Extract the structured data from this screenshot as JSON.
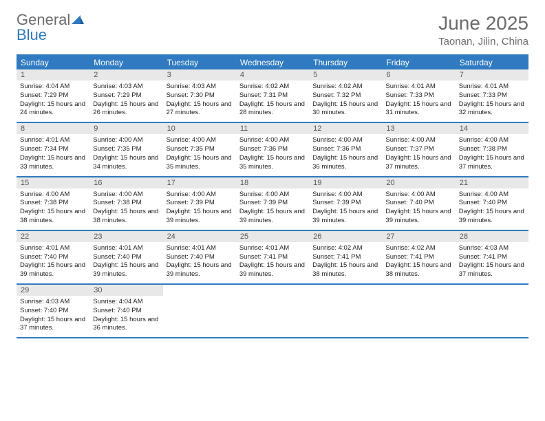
{
  "logo": {
    "word1": "General",
    "word2": "Blue"
  },
  "title": "June 2025",
  "location": "Taonan, Jilin, China",
  "header_bg": "#2f7ac0",
  "weekdays": [
    "Sunday",
    "Monday",
    "Tuesday",
    "Wednesday",
    "Thursday",
    "Friday",
    "Saturday"
  ],
  "colors": {
    "accent": "#2f7ac0",
    "header_text": "#ffffff",
    "day_num_bg": "#e8e8e8",
    "body_text": "#222222",
    "title_text": "#6b6b6b",
    "page_bg": "#ffffff"
  },
  "fonts": {
    "title_size_pt": 28,
    "location_size_pt": 15,
    "weekday_size_pt": 12,
    "daynum_size_pt": 11,
    "body_size_pt": 9.5
  },
  "weeks": [
    [
      {
        "n": "1",
        "sunrise": "4:04 AM",
        "sunset": "7:29 PM",
        "daylight": "15 hours and 24 minutes."
      },
      {
        "n": "2",
        "sunrise": "4:03 AM",
        "sunset": "7:29 PM",
        "daylight": "15 hours and 26 minutes."
      },
      {
        "n": "3",
        "sunrise": "4:03 AM",
        "sunset": "7:30 PM",
        "daylight": "15 hours and 27 minutes."
      },
      {
        "n": "4",
        "sunrise": "4:02 AM",
        "sunset": "7:31 PM",
        "daylight": "15 hours and 28 minutes."
      },
      {
        "n": "5",
        "sunrise": "4:02 AM",
        "sunset": "7:32 PM",
        "daylight": "15 hours and 30 minutes."
      },
      {
        "n": "6",
        "sunrise": "4:01 AM",
        "sunset": "7:33 PM",
        "daylight": "15 hours and 31 minutes."
      },
      {
        "n": "7",
        "sunrise": "4:01 AM",
        "sunset": "7:33 PM",
        "daylight": "15 hours and 32 minutes."
      }
    ],
    [
      {
        "n": "8",
        "sunrise": "4:01 AM",
        "sunset": "7:34 PM",
        "daylight": "15 hours and 33 minutes."
      },
      {
        "n": "9",
        "sunrise": "4:00 AM",
        "sunset": "7:35 PM",
        "daylight": "15 hours and 34 minutes."
      },
      {
        "n": "10",
        "sunrise": "4:00 AM",
        "sunset": "7:35 PM",
        "daylight": "15 hours and 35 minutes."
      },
      {
        "n": "11",
        "sunrise": "4:00 AM",
        "sunset": "7:36 PM",
        "daylight": "15 hours and 35 minutes."
      },
      {
        "n": "12",
        "sunrise": "4:00 AM",
        "sunset": "7:36 PM",
        "daylight": "15 hours and 36 minutes."
      },
      {
        "n": "13",
        "sunrise": "4:00 AM",
        "sunset": "7:37 PM",
        "daylight": "15 hours and 37 minutes."
      },
      {
        "n": "14",
        "sunrise": "4:00 AM",
        "sunset": "7:38 PM",
        "daylight": "15 hours and 37 minutes."
      }
    ],
    [
      {
        "n": "15",
        "sunrise": "4:00 AM",
        "sunset": "7:38 PM",
        "daylight": "15 hours and 38 minutes."
      },
      {
        "n": "16",
        "sunrise": "4:00 AM",
        "sunset": "7:38 PM",
        "daylight": "15 hours and 38 minutes."
      },
      {
        "n": "17",
        "sunrise": "4:00 AM",
        "sunset": "7:39 PM",
        "daylight": "15 hours and 39 minutes."
      },
      {
        "n": "18",
        "sunrise": "4:00 AM",
        "sunset": "7:39 PM",
        "daylight": "15 hours and 39 minutes."
      },
      {
        "n": "19",
        "sunrise": "4:00 AM",
        "sunset": "7:39 PM",
        "daylight": "15 hours and 39 minutes."
      },
      {
        "n": "20",
        "sunrise": "4:00 AM",
        "sunset": "7:40 PM",
        "daylight": "15 hours and 39 minutes."
      },
      {
        "n": "21",
        "sunrise": "4:00 AM",
        "sunset": "7:40 PM",
        "daylight": "15 hours and 39 minutes."
      }
    ],
    [
      {
        "n": "22",
        "sunrise": "4:01 AM",
        "sunset": "7:40 PM",
        "daylight": "15 hours and 39 minutes."
      },
      {
        "n": "23",
        "sunrise": "4:01 AM",
        "sunset": "7:40 PM",
        "daylight": "15 hours and 39 minutes."
      },
      {
        "n": "24",
        "sunrise": "4:01 AM",
        "sunset": "7:40 PM",
        "daylight": "15 hours and 39 minutes."
      },
      {
        "n": "25",
        "sunrise": "4:01 AM",
        "sunset": "7:41 PM",
        "daylight": "15 hours and 39 minutes."
      },
      {
        "n": "26",
        "sunrise": "4:02 AM",
        "sunset": "7:41 PM",
        "daylight": "15 hours and 38 minutes."
      },
      {
        "n": "27",
        "sunrise": "4:02 AM",
        "sunset": "7:41 PM",
        "daylight": "15 hours and 38 minutes."
      },
      {
        "n": "28",
        "sunrise": "4:03 AM",
        "sunset": "7:41 PM",
        "daylight": "15 hours and 37 minutes."
      }
    ],
    [
      {
        "n": "29",
        "sunrise": "4:03 AM",
        "sunset": "7:40 PM",
        "daylight": "15 hours and 37 minutes."
      },
      {
        "n": "30",
        "sunrise": "4:04 AM",
        "sunset": "7:40 PM",
        "daylight": "15 hours and 36 minutes."
      },
      null,
      null,
      null,
      null,
      null
    ]
  ],
  "labels": {
    "sunrise_prefix": "Sunrise: ",
    "sunset_prefix": "Sunset: ",
    "daylight_prefix": "Daylight: "
  }
}
